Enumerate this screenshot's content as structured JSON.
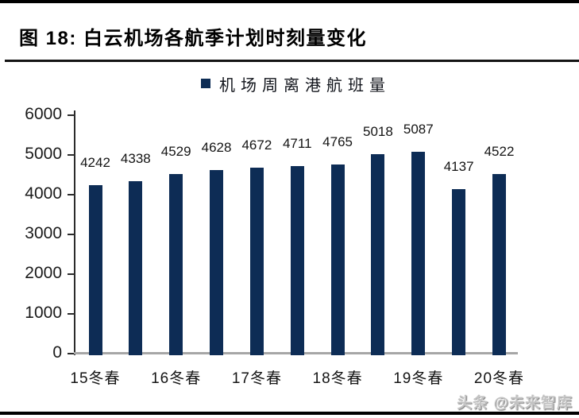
{
  "page": {
    "title": "图 18:  白云机场各航季计划时刻量变化",
    "watermark": "头条 @未来智库"
  },
  "chart_data": {
    "type": "bar",
    "title": "白云机场各航季计划时刻量变化",
    "figure_number": "图 18",
    "legend": [
      "机场周离港航班量"
    ],
    "legend_label": "机场周离港航班量",
    "legend_position": "top-center",
    "series": [
      {
        "name": "机场周离港航班量",
        "values": [
          4242,
          4338,
          4529,
          4628,
          4672,
          4711,
          4765,
          5018,
          5087,
          4137,
          4522
        ]
      }
    ],
    "values": [
      4242,
      4338,
      4529,
      4628,
      4672,
      4711,
      4765,
      5018,
      5087,
      4137,
      4522
    ],
    "data_labels": [
      "4242",
      "4338",
      "4529",
      "4628",
      "4672",
      "4711",
      "4765",
      "5018",
      "5087",
      "4137",
      "4522"
    ],
    "x_tick_labels": [
      "15冬春",
      "16冬春",
      "17冬春",
      "18冬春",
      "19冬春",
      "20冬春"
    ],
    "x_tick_every_other_bar": true,
    "xlabel": "",
    "ylabel": "",
    "ylim": [
      0,
      6000
    ],
    "yticks": [
      0,
      1000,
      2000,
      3000,
      4000,
      5000,
      6000
    ],
    "grid": false,
    "colors": {
      "bar": "#0d2c55",
      "axis": "#2b2b2b",
      "baseline": "#a6a6a6",
      "text": "#1a1a1a"
    }
  }
}
